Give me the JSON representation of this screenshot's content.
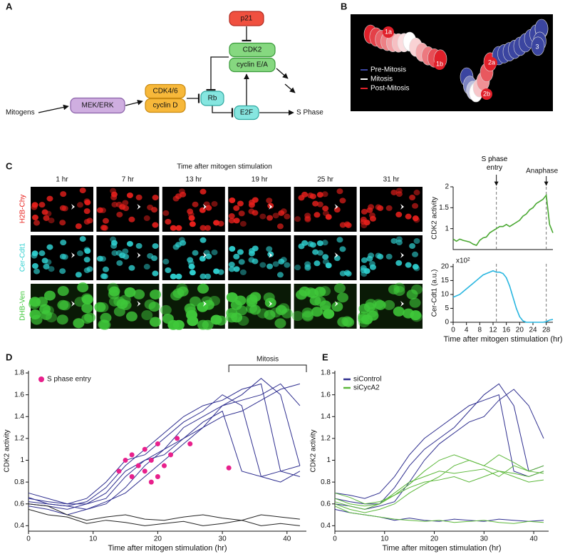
{
  "panel_labels": [
    "A",
    "B",
    "C",
    "D",
    "E"
  ],
  "diagram": {
    "nodes": [
      "p21",
      "CDK2",
      "cyclin E/A",
      "Mitogens",
      "MEK/ERK",
      "CDK4/6",
      "cyclin D",
      "Rb",
      "E2F",
      "S Phase"
    ]
  },
  "render_3d": {
    "cell_labels": [
      "1a",
      "1b",
      "2a",
      "2b",
      "3"
    ],
    "legend": [
      {
        "label": "Pre-Mitosis",
        "color": "#3b45a0"
      },
      {
        "label": "Mitosis",
        "color": "#ffffff"
      },
      {
        "label": "Post-Mitosis",
        "color": "#e0202a"
      }
    ]
  },
  "imaging": {
    "title": "Time after mitogen stimulation",
    "times": [
      "1 hr",
      "7 hr",
      "13 hr",
      "19 hr",
      "25 hr",
      "31 hr"
    ],
    "channels": [
      {
        "label": "H2B-Chy",
        "color": "#e8201c"
      },
      {
        "label": "Cer-Cdt1",
        "color": "#2fd0d0"
      },
      {
        "label": "DHB-Ven",
        "color": "#3fc83a"
      }
    ]
  },
  "chart_data": [
    {
      "type": "line",
      "ylabel": "CDK2 activity",
      "color": "#4aa832",
      "x": [
        0,
        1,
        2,
        3,
        4,
        5,
        6,
        7,
        8,
        9,
        10,
        11,
        12,
        13,
        14,
        15,
        16,
        17,
        18,
        19,
        20,
        21,
        22,
        23,
        24,
        25,
        26,
        27,
        28,
        29,
        30
      ],
      "values": [
        0.75,
        0.7,
        0.75,
        0.72,
        0.7,
        0.68,
        0.63,
        0.6,
        0.72,
        0.78,
        0.8,
        0.9,
        0.95,
        1.0,
        1.05,
        1.05,
        1.1,
        1.05,
        1.1,
        1.15,
        1.2,
        1.3,
        1.35,
        1.45,
        1.5,
        1.6,
        1.65,
        1.7,
        1.8,
        1.1,
        0.9
      ],
      "xlim": [
        0,
        30
      ],
      "ylim": [
        0.5,
        2
      ],
      "yticks": [
        1,
        1.5,
        2
      ],
      "markers": [
        {
          "x": 13,
          "label": "S phase entry"
        },
        {
          "x": 28,
          "label": "Anaphase"
        }
      ]
    },
    {
      "type": "line",
      "ylabel": "Cer-Cdt1 (a.u.)",
      "scale_label": "x10²",
      "color": "#29b6e0",
      "x": [
        0,
        1,
        2,
        3,
        4,
        5,
        6,
        7,
        8,
        9,
        10,
        11,
        12,
        13,
        14,
        15,
        16,
        17,
        18,
        19,
        20,
        21,
        22,
        23,
        24,
        25,
        26,
        27,
        28,
        29,
        30
      ],
      "values": [
        9,
        9.5,
        10,
        11,
        12,
        13,
        14,
        15,
        16,
        17,
        17.5,
        18,
        18.5,
        18,
        18,
        17.5,
        16,
        13,
        9,
        5,
        2,
        0.5,
        0,
        0,
        0,
        0,
        0,
        0,
        0.2,
        0.8,
        1
      ],
      "xlim": [
        0,
        30
      ],
      "ylim": [
        0,
        21
      ],
      "yticks": [
        0,
        5,
        10,
        15,
        20
      ],
      "xticks": [
        0,
        4,
        8,
        12,
        16,
        20,
        24,
        28
      ],
      "markers": [
        {
          "x": 13
        },
        {
          "x": 28
        }
      ],
      "xlabel": "Time after mitogen stimulation (hr)"
    },
    {
      "type": "line",
      "ylabel": "CDK2 activity",
      "xlabel": "Time after mitogen stimulation (hr)",
      "xlim": [
        0,
        43
      ],
      "ylim": [
        0.35,
        1.82
      ],
      "xticks": [
        0,
        10,
        20,
        30,
        40
      ],
      "yticks": [
        0.4,
        0.6,
        0.8,
        1,
        1.2,
        1.4,
        1.6,
        1.8
      ],
      "legend": "upper left",
      "bracket": {
        "label": "Mitosis",
        "x": [
          31,
          43
        ]
      },
      "x": [
        0,
        3,
        6,
        9,
        12,
        15,
        18,
        21,
        24,
        27,
        30,
        33,
        36,
        39,
        42
      ],
      "lines": [
        {
          "color": "#2e2e8f",
          "values": [
            0.62,
            0.6,
            0.58,
            0.62,
            0.75,
            0.95,
            1.1,
            1.25,
            1.4,
            1.5,
            1.55,
            1.65,
            1.7,
            0.9,
            0.85
          ]
        },
        {
          "color": "#2e2e8f",
          "values": [
            0.65,
            0.62,
            0.6,
            0.65,
            0.8,
            1.0,
            1.05,
            1.2,
            1.35,
            1.45,
            1.6,
            1.5,
            0.85,
            0.8,
            0.9
          ]
        },
        {
          "color": "#2e2e8f",
          "values": [
            0.6,
            0.58,
            0.55,
            0.6,
            0.65,
            0.85,
            1.0,
            1.1,
            1.3,
            1.4,
            1.5,
            1.6,
            1.75,
            1.6,
            0.95
          ]
        },
        {
          "color": "#2e2e8f",
          "values": [
            0.7,
            0.65,
            0.6,
            0.6,
            0.7,
            0.9,
            1.0,
            1.05,
            1.2,
            1.35,
            1.45,
            0.9,
            0.85,
            0.9,
            0.95
          ]
        },
        {
          "color": "#2e2e8f",
          "values": [
            0.58,
            0.55,
            0.5,
            0.55,
            0.6,
            0.75,
            0.95,
            1.1,
            1.2,
            1.3,
            1.5,
            1.55,
            1.6,
            1.7,
            1.5
          ]
        },
        {
          "color": "#2e2e8f",
          "values": [
            0.66,
            0.6,
            0.58,
            0.55,
            0.62,
            0.7,
            0.85,
            1.0,
            1.15,
            1.3,
            1.4,
            1.45,
            1.55,
            1.65,
            1.7
          ]
        },
        {
          "color": "#222222",
          "values": [
            0.6,
            0.58,
            0.5,
            0.45,
            0.48,
            0.5,
            0.46,
            0.45,
            0.48,
            0.5,
            0.47,
            0.45,
            0.5,
            0.48,
            0.46
          ]
        },
        {
          "color": "#222222",
          "values": [
            0.55,
            0.5,
            0.48,
            0.42,
            0.45,
            0.43,
            0.4,
            0.42,
            0.44,
            0.4,
            0.42,
            0.45,
            0.4,
            0.42,
            0.4
          ]
        }
      ],
      "scatter": {
        "name": "S phase entry",
        "color": "#e8208c",
        "x": [
          14,
          15,
          16,
          17,
          18,
          19,
          20,
          21,
          22,
          16,
          18,
          20,
          23,
          19,
          25,
          31
        ],
        "y": [
          0.9,
          1.0,
          1.05,
          0.95,
          1.1,
          1.0,
          0.85,
          0.95,
          1.05,
          0.85,
          0.9,
          1.15,
          1.2,
          0.8,
          1.15,
          0.93
        ]
      }
    },
    {
      "type": "line",
      "ylabel": "CDK2 activity",
      "xlabel": "Time after mitogen stimulation (hr)",
      "xlim": [
        0,
        43
      ],
      "ylim": [
        0.35,
        1.82
      ],
      "xticks": [
        0,
        10,
        20,
        30,
        40
      ],
      "yticks": [
        0.4,
        0.6,
        0.8,
        1,
        1.2,
        1.4,
        1.6,
        1.8
      ],
      "legend": "upper left",
      "x": [
        0,
        3,
        6,
        9,
        12,
        15,
        18,
        21,
        24,
        27,
        30,
        33,
        36,
        39,
        42
      ],
      "groups": [
        {
          "name": "siControl",
          "color": "#2e2e8f",
          "lines": [
            [
              0.7,
              0.68,
              0.65,
              0.7,
              0.85,
              1.05,
              1.2,
              1.3,
              1.4,
              1.5,
              1.55,
              1.6,
              0.9,
              0.85,
              0.9
            ],
            [
              0.65,
              0.62,
              0.6,
              0.6,
              0.75,
              0.95,
              1.1,
              1.2,
              1.3,
              1.45,
              1.6,
              1.7,
              1.5,
              0.9,
              0.95
            ],
            [
              0.6,
              0.58,
              0.55,
              0.58,
              0.62,
              0.8,
              1.0,
              1.15,
              1.25,
              1.35,
              1.4,
              1.55,
              1.65,
              1.5,
              1.2
            ],
            [
              0.55,
              0.52,
              0.5,
              0.48,
              0.45,
              0.47,
              0.45,
              0.44,
              0.46,
              0.45,
              0.44,
              0.46,
              0.45,
              0.44,
              0.45
            ]
          ]
        },
        {
          "name": "siCycA2",
          "color": "#5cb83a",
          "lines": [
            [
              0.65,
              0.6,
              0.58,
              0.6,
              0.7,
              0.8,
              0.85,
              0.9,
              0.88,
              0.9,
              0.92,
              0.85,
              0.95,
              0.9,
              0.88
            ],
            [
              0.7,
              0.66,
              0.6,
              0.62,
              0.68,
              0.75,
              0.8,
              0.82,
              0.85,
              0.8,
              0.85,
              0.9,
              0.88,
              0.85,
              0.9
            ],
            [
              0.6,
              0.55,
              0.52,
              0.55,
              0.6,
              0.7,
              0.78,
              0.85,
              0.95,
              1.0,
              0.95,
              0.9,
              0.85,
              0.8,
              0.82
            ],
            [
              0.62,
              0.58,
              0.55,
              0.6,
              0.68,
              0.78,
              0.9,
              1.0,
              1.05,
              1.0,
              0.95,
              1.05,
              0.98,
              0.9,
              0.95
            ],
            [
              0.58,
              0.52,
              0.5,
              0.48,
              0.46,
              0.45,
              0.44,
              0.45,
              0.43,
              0.44,
              0.45,
              0.43,
              0.42,
              0.44,
              0.43
            ]
          ]
        }
      ]
    }
  ]
}
